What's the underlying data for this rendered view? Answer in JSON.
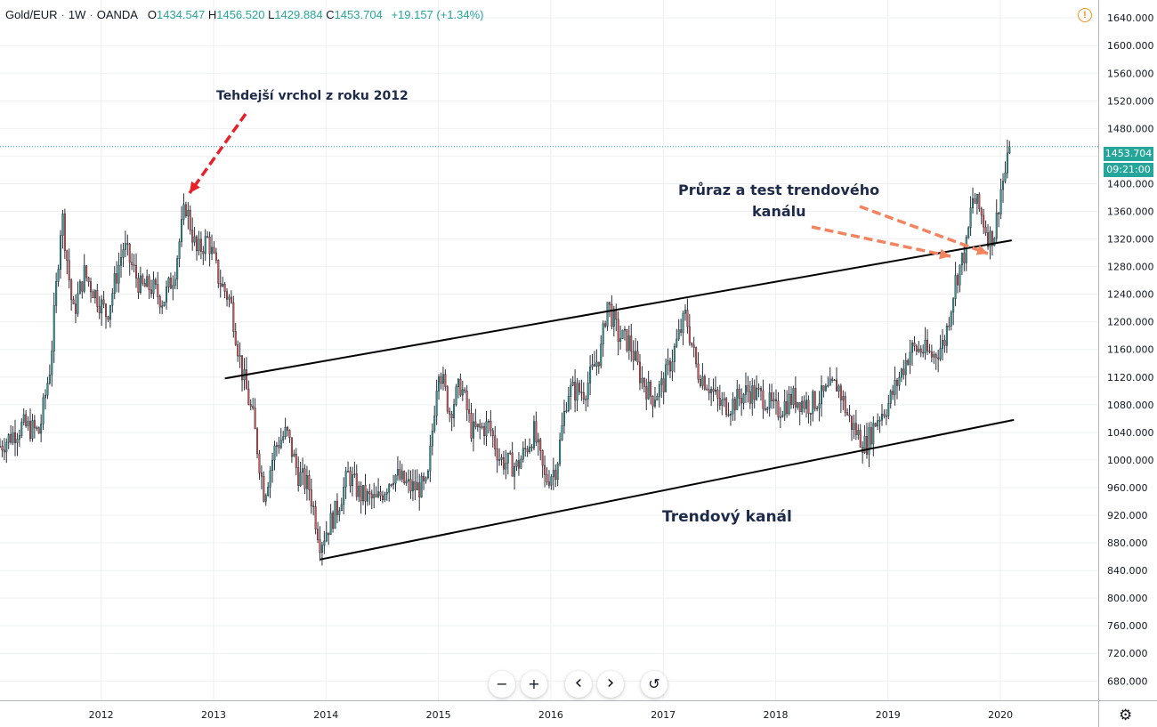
{
  "legend": {
    "symbol": "Gold/EUR",
    "interval": "1W",
    "exchange": "OANDA",
    "o_label": "O",
    "o_value": "1434.547",
    "h_label": "H",
    "h_value": "1456.520",
    "l_label": "L",
    "l_value": "1429.884",
    "c_label": "C",
    "c_value": "1453.704",
    "change": "+19.157 (+1.34%)"
  },
  "alert_icon": "!",
  "price_tag": {
    "price": "1453.704",
    "countdown": "09:21:00"
  },
  "annotations": {
    "peak": "Tehdejší vrchol z roku 2012",
    "breakout_line1": "Průraz a test trendového",
    "breakout_line2": "kanálu",
    "channel": "Trendový kanál"
  },
  "controls": {
    "zoom_out": "−",
    "zoom_in": "+",
    "scroll_left": "‹",
    "scroll_right": "›",
    "reset": "↺"
  },
  "settings_icon": "⚙",
  "colors": {
    "up": "#26a69a",
    "down": "#ef5350",
    "arrow_red": "#e8202a",
    "arrow_orange": "#f4845f",
    "grid": "#eef0f3",
    "axis": "#131722"
  },
  "chart_data": {
    "type": "candlestick",
    "title": "Gold/EUR · 1W · OANDA",
    "y_ticks": [
      680,
      720,
      760,
      800,
      840,
      880,
      920,
      960,
      1000,
      1040,
      1080,
      1120,
      1160,
      1200,
      1240,
      1280,
      1320,
      1360,
      1400,
      1440,
      1480,
      1520,
      1560,
      1600,
      1640
    ],
    "y_tick_labels": [
      "680.000",
      "720.000",
      "760.000",
      "800.000",
      "840.000",
      "880.000",
      "920.000",
      "960.000",
      "1000.000",
      "1040.000",
      "1080.000",
      "1120.000",
      "1160.000",
      "1200.000",
      "1240.000",
      "1280.000",
      "1320.000",
      "1360.000",
      "1400.000",
      "1440.000",
      "1480.000",
      "1520.000",
      "1560.000",
      "1600.000",
      "1640.000"
    ],
    "x_tick_labels": [
      "2012",
      "2013",
      "2014",
      "2015",
      "2016",
      "2017",
      "2018",
      "2019",
      "2020"
    ],
    "x_tick_years": [
      2012,
      2013,
      2014,
      2015,
      2016,
      2017,
      2018,
      2019,
      2020
    ],
    "x_range": [
      2011.1,
      2020.87
    ],
    "y_range": [
      652,
      1666
    ],
    "last_price": 1453.704,
    "price_path": [
      [
        2011.1,
        1020
      ],
      [
        2011.3,
        1050
      ],
      [
        2011.45,
        1040
      ],
      [
        2011.55,
        1140
      ],
      [
        2011.65,
        1360
      ],
      [
        2011.75,
        1210
      ],
      [
        2011.85,
        1270
      ],
      [
        2011.95,
        1240
      ],
      [
        2012.05,
        1210
      ],
      [
        2012.2,
        1310
      ],
      [
        2012.35,
        1250
      ],
      [
        2012.45,
        1250
      ],
      [
        2012.55,
        1230
      ],
      [
        2012.65,
        1270
      ],
      [
        2012.75,
        1370
      ],
      [
        2012.85,
        1300
      ],
      [
        2012.95,
        1320
      ],
      [
        2013.05,
        1260
      ],
      [
        2013.15,
        1230
      ],
      [
        2013.25,
        1130
      ],
      [
        2013.35,
        1060
      ],
      [
        2013.45,
        950
      ],
      [
        2013.55,
        1020
      ],
      [
        2013.65,
        1040
      ],
      [
        2013.75,
        980
      ],
      [
        2013.85,
        960
      ],
      [
        2013.95,
        880
      ],
      [
        2014.1,
        930
      ],
      [
        2014.2,
        980
      ],
      [
        2014.3,
        950
      ],
      [
        2014.45,
        940
      ],
      [
        2014.6,
        980
      ],
      [
        2014.75,
        960
      ],
      [
        2014.9,
        960
      ],
      [
        2015.0,
        1140
      ],
      [
        2015.1,
        1070
      ],
      [
        2015.2,
        1110
      ],
      [
        2015.3,
        1040
      ],
      [
        2015.45,
        1050
      ],
      [
        2015.55,
        1000
      ],
      [
        2015.7,
        990
      ],
      [
        2015.85,
        1040
      ],
      [
        2015.95,
        970
      ],
      [
        2016.05,
        990
      ],
      [
        2016.15,
        1100
      ],
      [
        2016.3,
        1100
      ],
      [
        2016.45,
        1160
      ],
      [
        2016.5,
        1230
      ],
      [
        2016.6,
        1180
      ],
      [
        2016.7,
        1170
      ],
      [
        2016.8,
        1120
      ],
      [
        2016.9,
        1090
      ],
      [
        2017.0,
        1110
      ],
      [
        2017.1,
        1160
      ],
      [
        2017.2,
        1210
      ],
      [
        2017.3,
        1130
      ],
      [
        2017.4,
        1110
      ],
      [
        2017.5,
        1080
      ],
      [
        2017.6,
        1080
      ],
      [
        2017.75,
        1100
      ],
      [
        2017.9,
        1090
      ],
      [
        2018.0,
        1070
      ],
      [
        2018.15,
        1090
      ],
      [
        2018.3,
        1080
      ],
      [
        2018.4,
        1090
      ],
      [
        2018.55,
        1110
      ],
      [
        2018.65,
        1060
      ],
      [
        2018.72,
        1040
      ],
      [
        2018.8,
        1020
      ],
      [
        2018.9,
        1060
      ],
      [
        2019.0,
        1080
      ],
      [
        2019.1,
        1120
      ],
      [
        2019.2,
        1160
      ],
      [
        2019.3,
        1160
      ],
      [
        2019.4,
        1150
      ],
      [
        2019.5,
        1170
      ],
      [
        2019.6,
        1260
      ],
      [
        2019.7,
        1310
      ],
      [
        2019.75,
        1380
      ],
      [
        2019.82,
        1360
      ],
      [
        2019.9,
        1320
      ],
      [
        2019.95,
        1330
      ],
      [
        2020.0,
        1390
      ],
      [
        2020.05,
        1420
      ],
      [
        2020.09,
        1453.704
      ]
    ],
    "trend_lines": [
      {
        "name": "upper",
        "x": [
          2013.1,
          2020.1
        ],
        "y": [
          1118,
          1318
        ]
      },
      {
        "name": "lower",
        "x": [
          2013.95,
          2020.12
        ],
        "y": [
          856,
          1058
        ]
      }
    ]
  }
}
